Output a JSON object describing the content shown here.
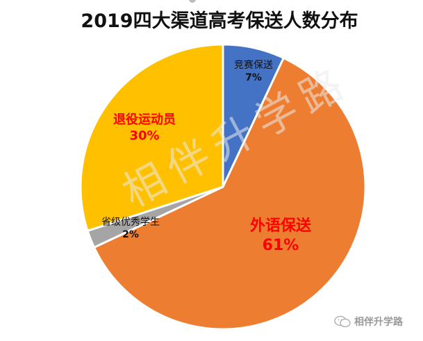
{
  "chart_data": {
    "type": "pie",
    "title": "2019四大渠道高考保送人数分布",
    "categories": [
      "竞赛保送",
      "外语保送",
      "省级优秀学生",
      "退役运动员"
    ],
    "values": [
      7,
      61,
      2,
      30
    ],
    "unit": "%",
    "colors": [
      "#4472C4",
      "#ED7D31",
      "#A5A5A5",
      "#FFC000"
    ],
    "start_angle_deg": 0,
    "direction": "clockwise",
    "legend": "none",
    "data_labels": [
      {
        "name": "竞赛保送",
        "pct": "7%",
        "color": "#111111"
      },
      {
        "name": "外语保送",
        "pct": "61%",
        "color": "#FF0000"
      },
      {
        "name": "省级优秀学生",
        "pct": "2%",
        "color": "#111111"
      },
      {
        "name": "退役运动员",
        "pct": "30%",
        "color": "#FF0000"
      }
    ]
  },
  "watermark": {
    "center_text": "相伴升学路",
    "corner_text": "相伴升学路",
    "corner_icon": "wechat-icon"
  }
}
